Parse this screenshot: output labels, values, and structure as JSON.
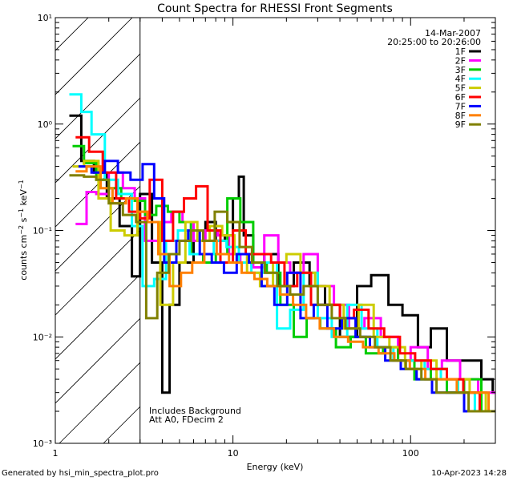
{
  "chart_data": {
    "type": "line",
    "title": "Count Spectra for RHESSI Front Segments",
    "xlabel": "Energy (keV)",
    "ylabel": "counts cm^-2 s^-1 keV^-1",
    "x_scale": "log",
    "y_scale": "log",
    "xlim": [
      1.0,
      300.0
    ],
    "ylim": [
      0.001,
      10.0
    ],
    "x_ticks": [
      {
        "value": 1,
        "label": "1"
      },
      {
        "value": 10,
        "label": "10"
      },
      {
        "value": 100,
        "label": "100"
      }
    ],
    "y_ticks": [
      {
        "value": 0.001,
        "label": "10⁻³"
      },
      {
        "value": 0.01,
        "label": "10⁻²"
      },
      {
        "value": 0.1,
        "label": "10⁻¹"
      },
      {
        "value": 1,
        "label": "10⁰"
      },
      {
        "value": 10,
        "label": "10¹"
      }
    ],
    "date": "14-Mar-2007",
    "time_range": "20:25:00 to 20:26:00",
    "excluded_region_max_energy": 3.0,
    "annotations": [
      "Includes Background",
      "Att A0, FDecim 2"
    ],
    "legend_position": "top-right",
    "series": [
      {
        "name": "1F",
        "color": "#000000",
        "x": [
          1.2,
          1.4,
          1.65,
          1.95,
          2.3,
          2.7,
          3.0,
          3.5,
          4.0,
          4.4,
          5.0,
          6.0,
          7.0,
          8.0,
          9.0,
          10.0,
          10.8,
          11.5,
          13.0,
          15.0,
          18.0,
          22.0,
          27.0,
          33.0,
          40.0,
          50.0,
          60.0,
          75.0,
          90.0,
          110.0,
          130.0,
          160.0,
          200.0,
          250.0,
          290.0
        ],
        "y": [
          1.2,
          0.45,
          0.35,
          0.2,
          0.11,
          0.037,
          0.22,
          0.05,
          0.003,
          0.02,
          0.05,
          0.1,
          0.12,
          0.08,
          0.09,
          0.2,
          0.32,
          0.09,
          0.05,
          0.06,
          0.03,
          0.05,
          0.03,
          0.02,
          0.01,
          0.03,
          0.038,
          0.02,
          0.016,
          0.008,
          0.012,
          0.006,
          0.006,
          0.004,
          0.003
        ]
      },
      {
        "name": "2F",
        "color": "#ff00ff",
        "x": [
          1.3,
          1.5,
          1.7,
          2.0,
          2.4,
          2.8,
          3.2,
          3.8,
          4.5,
          5.2,
          6.0,
          7.0,
          8.2,
          9.5,
          11.0,
          13.0,
          15.0,
          18.0,
          21.0,
          25.0,
          30.0,
          37.0,
          45.0,
          55.0,
          68.0,
          85.0,
          100.0,
          125.0,
          150.0,
          190.0,
          240.0,
          285.0
        ],
        "y": [
          0.115,
          0.23,
          0.22,
          0.35,
          0.25,
          0.2,
          0.08,
          0.12,
          0.15,
          0.12,
          0.08,
          0.1,
          0.09,
          0.06,
          0.05,
          0.045,
          0.09,
          0.05,
          0.04,
          0.06,
          0.03,
          0.02,
          0.012,
          0.015,
          0.01,
          0.006,
          0.008,
          0.005,
          0.006,
          0.004,
          0.003,
          0.003
        ]
      },
      {
        "name": "3F",
        "color": "#00cc00",
        "x": [
          1.25,
          1.45,
          1.7,
          2.0,
          2.35,
          2.8,
          3.2,
          3.7,
          4.3,
          5.0,
          5.8,
          6.8,
          8.0,
          9.3,
          11.0,
          13.0,
          15.5,
          18.5,
          22.0,
          26.0,
          31.0,
          38.0,
          46.0,
          56.0,
          70.0,
          85.0,
          105.0,
          130.0,
          160.0,
          200.0,
          250.0
        ],
        "y": [
          0.62,
          0.43,
          0.3,
          0.25,
          0.2,
          0.19,
          0.14,
          0.17,
          0.15,
          0.12,
          0.06,
          0.05,
          0.06,
          0.2,
          0.12,
          0.05,
          0.04,
          0.02,
          0.01,
          0.015,
          0.012,
          0.008,
          0.01,
          0.007,
          0.008,
          0.006,
          0.004,
          0.005,
          0.003,
          0.004,
          0.002
        ]
      },
      {
        "name": "4F",
        "color": "#00ffff",
        "x": [
          1.2,
          1.4,
          1.6,
          1.9,
          2.25,
          2.7,
          3.1,
          3.6,
          4.2,
          4.9,
          5.7,
          6.7,
          7.8,
          9.2,
          10.8,
          12.7,
          15.0,
          17.7,
          21.0,
          25.0,
          30.0,
          36.0,
          44.0,
          53.0,
          65.0,
          80.0,
          98.0,
          120.0,
          148.0,
          185.0,
          230.0,
          280.0
        ],
        "y": [
          1.9,
          1.3,
          0.8,
          0.3,
          0.22,
          0.11,
          0.03,
          0.035,
          0.08,
          0.1,
          0.06,
          0.06,
          0.08,
          0.07,
          0.05,
          0.04,
          0.05,
          0.012,
          0.018,
          0.04,
          0.015,
          0.01,
          0.02,
          0.012,
          0.008,
          0.006,
          0.006,
          0.005,
          0.004,
          0.003,
          0.002,
          0.002
        ]
      },
      {
        "name": "5F",
        "color": "#cccc00",
        "x": [
          1.25,
          1.45,
          1.75,
          2.05,
          2.45,
          2.9,
          3.3,
          3.9,
          4.6,
          5.4,
          6.3,
          7.4,
          8.7,
          10.2,
          12.0,
          14.2,
          16.8,
          20.0,
          24.0,
          29.0,
          35.0,
          42.0,
          51.0,
          62.0,
          76.0,
          93.0,
          115.0,
          140.0,
          172.0,
          215.0,
          265.0
        ],
        "y": [
          0.4,
          0.45,
          0.2,
          0.1,
          0.09,
          0.15,
          0.12,
          0.02,
          0.05,
          0.12,
          0.08,
          0.11,
          0.09,
          0.06,
          0.04,
          0.03,
          0.05,
          0.06,
          0.04,
          0.03,
          0.02,
          0.012,
          0.02,
          0.01,
          0.008,
          0.005,
          0.006,
          0.004,
          0.004,
          0.003,
          0.002
        ]
      },
      {
        "name": "6F",
        "color": "#ff0000",
        "x": [
          1.3,
          1.55,
          1.85,
          2.2,
          2.6,
          3.0,
          3.4,
          4.0,
          4.6,
          5.3,
          6.2,
          7.2,
          8.5,
          10.0,
          11.8,
          13.9,
          16.4,
          19.5,
          23.0,
          27.5,
          33.0,
          40.0,
          48.0,
          58.0,
          71.0,
          87.0,
          106.0,
          130.0,
          160.0,
          198.0,
          245.0
        ],
        "y": [
          0.75,
          0.55,
          0.35,
          0.2,
          0.15,
          0.13,
          0.3,
          0.08,
          0.15,
          0.2,
          0.26,
          0.1,
          0.05,
          0.1,
          0.06,
          0.06,
          0.05,
          0.03,
          0.04,
          0.02,
          0.02,
          0.015,
          0.018,
          0.012,
          0.01,
          0.007,
          0.006,
          0.005,
          0.004,
          0.003,
          0.002
        ]
      },
      {
        "name": "7F",
        "color": "#0000ff",
        "x": [
          1.35,
          1.6,
          1.9,
          2.25,
          2.65,
          3.1,
          3.6,
          4.1,
          4.8,
          5.6,
          6.5,
          7.6,
          8.9,
          10.5,
          12.3,
          14.5,
          17.1,
          20.2,
          24.0,
          28.5,
          34.0,
          41.0,
          49.0,
          59.0,
          72.0,
          88.0,
          108.0,
          132.0,
          162.0,
          200.0,
          250.0
        ],
        "y": [
          0.4,
          0.35,
          0.45,
          0.35,
          0.3,
          0.42,
          0.2,
          0.05,
          0.08,
          0.1,
          0.06,
          0.05,
          0.04,
          0.06,
          0.05,
          0.03,
          0.02,
          0.04,
          0.015,
          0.02,
          0.012,
          0.015,
          0.01,
          0.008,
          0.006,
          0.005,
          0.004,
          0.003,
          0.003,
          0.002,
          0.002
        ]
      },
      {
        "name": "8F",
        "color": "#ff8000",
        "x": [
          1.3,
          1.5,
          1.8,
          2.1,
          2.5,
          2.9,
          3.3,
          3.8,
          4.4,
          5.1,
          5.9,
          6.9,
          8.1,
          9.5,
          11.2,
          13.2,
          15.6,
          18.4,
          21.8,
          25.8,
          30.8,
          37.0,
          44.5,
          54.0,
          66.0,
          81.0,
          99.0,
          121.0,
          148.0,
          182.0,
          225.0,
          275.0
        ],
        "y": [
          0.36,
          0.4,
          0.25,
          0.18,
          0.2,
          0.15,
          0.12,
          0.06,
          0.03,
          0.04,
          0.05,
          0.08,
          0.06,
          0.05,
          0.04,
          0.035,
          0.03,
          0.025,
          0.02,
          0.015,
          0.012,
          0.01,
          0.009,
          0.008,
          0.007,
          0.006,
          0.005,
          0.004,
          0.004,
          0.003,
          0.003,
          0.002
        ]
      },
      {
        "name": "9F",
        "color": "#808000",
        "x": [
          1.2,
          1.45,
          1.7,
          2.0,
          2.4,
          2.85,
          3.25,
          3.75,
          4.35,
          5.0,
          5.8,
          6.8,
          7.9,
          9.3,
          10.9,
          12.8,
          15.1,
          17.8,
          21.0,
          25.0,
          30.0,
          36.0,
          43.0,
          52.0,
          63.0,
          77.0,
          94.0,
          115.0,
          140.0,
          172.0,
          212.0,
          260.0
        ],
        "y": [
          0.33,
          0.32,
          0.3,
          0.18,
          0.14,
          0.12,
          0.015,
          0.04,
          0.06,
          0.08,
          0.1,
          0.08,
          0.15,
          0.12,
          0.07,
          0.05,
          0.04,
          0.03,
          0.025,
          0.03,
          0.02,
          0.015,
          0.012,
          0.01,
          0.008,
          0.006,
          0.005,
          0.004,
          0.003,
          0.003,
          0.002,
          0.002
        ]
      }
    ]
  },
  "footer": {
    "left": "Generated by hsi_min_spectra_plot.pro",
    "right": "10-Apr-2023 14:28"
  },
  "colors": {
    "background": "#ffffff",
    "axes": "#000000"
  }
}
